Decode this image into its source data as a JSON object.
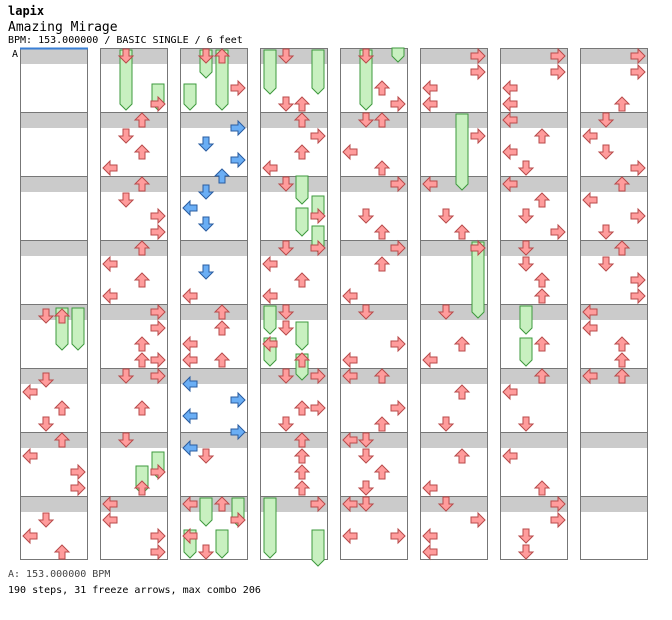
{
  "header": {
    "artist": "lapix",
    "song": "Amazing Mirage",
    "meta": "BPM: 153.000000 / BASIC SINGLE / 6 feet"
  },
  "chart": {
    "bpm_marker": "A",
    "columns": 8,
    "measures_per_column": 8
  },
  "footer": {
    "bpm_line": "A: 153.000000 BPM",
    "stats": "190 steps, 31 freeze arrows, max combo 206"
  },
  "colors": {
    "quarter": "#ff9c9c",
    "eighth": "#6aaef5",
    "freeze": "#c8f0c0",
    "stripe": "#cbcbcb"
  }
}
